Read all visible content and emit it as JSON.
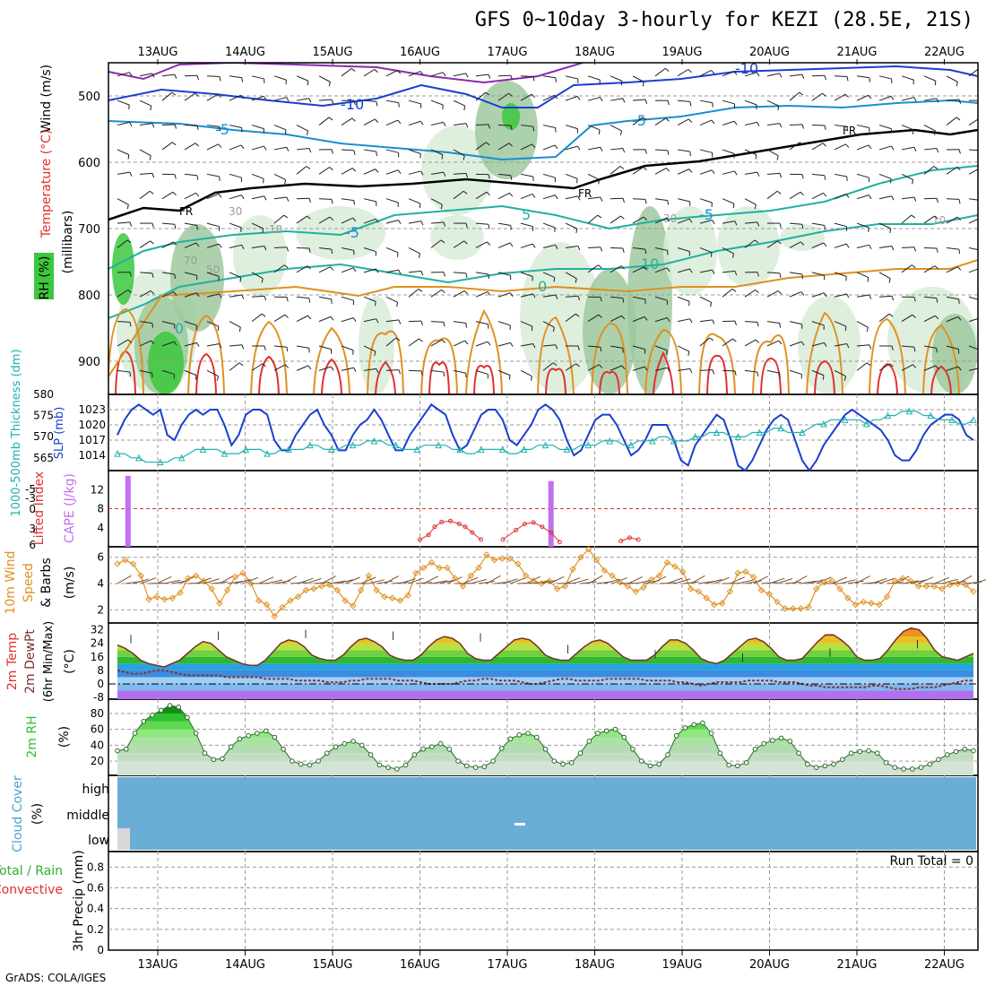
{
  "title": "GFS 0~10day 3-hourly for KEZI (28.5E, 21S)",
  "credit": "GrADS: COLA/IGES",
  "dates": [
    "13AUG",
    "14AUG",
    "15AUG",
    "16AUG",
    "17AUG",
    "18AUG",
    "19AUG",
    "20AUG",
    "21AUG",
    "22AUG"
  ],
  "colors": {
    "frame": "#000000",
    "grid": "#9a9a9a",
    "wind": "#202020",
    "temp_cold": "#1a3fd0",
    "temp_mid": "#1a8fd0",
    "temp_cool": "#20b0a0",
    "temp_warm": "#e09020",
    "temp_hot": "#e03030",
    "freezing": "#000000",
    "rh_light": "#d8ecd8",
    "rh_mid": "#9fc99f",
    "rh_dark": "#7a9a7a",
    "rh_green": "#3cc83c",
    "slp": "#1a3fd0",
    "thickness": "#20b0b0",
    "cape": "#c070f0",
    "li": "#e03030",
    "wind10": "#e09020",
    "rh2m": "#30c030",
    "cloud": "#6aaed6",
    "precip": "#30b030"
  },
  "chart_data": [
    {
      "type": "heatmap",
      "name": "upper_air",
      "ylabel": "(millibars)",
      "side_labels": [
        "Wind (m/s)",
        "Temperature (°C)",
        "RH (%)"
      ],
      "yticks": [
        500,
        600,
        700,
        800,
        900
      ],
      "ylim": [
        450,
        950
      ],
      "contour_labels": [
        "-10",
        "-10",
        "-5",
        "-5",
        "-5",
        "-5",
        "0",
        "0",
        "5",
        "10",
        "10",
        "FR",
        "FR",
        "FR",
        "30",
        "50",
        "70",
        "10",
        "30"
      ]
    },
    {
      "type": "line",
      "name": "slp_thickness",
      "left_label": "1000-500mb Thickness (dm)",
      "right_label": "SLP (mb)",
      "left_ticks": [
        565,
        570,
        575,
        580
      ],
      "right_ticks": [
        1014,
        1017,
        1020,
        1023
      ],
      "series": [
        {
          "name": "SLP (mb)",
          "values": [
            1018,
            1021,
            1023,
            1024,
            1023,
            1022,
            1023,
            1018,
            1017,
            1020,
            1022,
            1023,
            1022,
            1023,
            1023,
            1020,
            1016,
            1018,
            1022,
            1023,
            1023,
            1022,
            1017,
            1015,
            1015,
            1018,
            1020,
            1022,
            1023,
            1020,
            1018,
            1015,
            1015,
            1018,
            1020,
            1021,
            1023,
            1021,
            1018,
            1015,
            1015,
            1018,
            1020,
            1022,
            1024,
            1023,
            1022,
            1018,
            1015,
            1016,
            1019,
            1022,
            1023,
            1023,
            1021,
            1017,
            1016,
            1018,
            1020,
            1023,
            1024,
            1023,
            1021,
            1017,
            1014,
            1015,
            1018,
            1021,
            1022,
            1022,
            1020,
            1017,
            1014,
            1015,
            1017,
            1020,
            1020,
            1020,
            1017,
            1013,
            1012,
            1016,
            1018,
            1020,
            1022,
            1021,
            1017,
            1012,
            1011,
            1013,
            1016,
            1019,
            1021,
            1022,
            1021,
            1017,
            1013,
            1011,
            1013,
            1016,
            1018,
            1020,
            1022,
            1023,
            1022,
            1021,
            1020,
            1019,
            1017,
            1014,
            1013,
            1013,
            1015,
            1018,
            1020,
            1021,
            1022,
            1022,
            1021,
            1018,
            1017
          ]
        },
        {
          "name": "1000-500mb Thickness (dm)",
          "values": [
            566,
            566,
            565,
            565,
            564,
            564,
            564,
            564,
            565,
            565,
            566,
            567,
            567,
            567,
            567,
            566,
            566,
            566,
            567,
            567,
            567,
            566,
            566,
            567,
            567,
            567,
            567,
            568,
            568,
            567,
            567,
            567,
            568,
            568,
            568,
            569,
            569,
            569,
            568,
            568,
            567,
            567,
            567,
            568,
            568,
            568,
            568,
            567,
            567,
            566,
            566,
            567,
            567,
            567,
            567,
            566,
            566,
            567,
            567,
            568,
            568,
            568,
            567,
            567,
            567,
            568,
            568,
            568,
            569,
            569,
            569,
            568,
            568,
            569,
            569,
            569,
            570,
            570,
            569,
            569,
            569,
            570,
            570,
            571,
            571,
            571,
            570,
            570,
            570,
            571,
            571,
            571,
            572,
            572,
            571,
            571,
            571,
            572,
            573,
            573,
            574,
            574,
            574,
            574,
            574,
            573,
            574,
            574,
            575,
            575,
            576,
            576,
            576,
            575,
            575,
            574,
            574,
            574,
            573,
            573,
            574
          ]
        }
      ]
    },
    {
      "type": "bar",
      "name": "cape_li",
      "left_label": "Lifted Index",
      "right_label": "CAPE (J/kg)",
      "left_ticks": [
        "-5",
        "-3",
        "0",
        "3",
        "6"
      ],
      "right_ticks": [
        4,
        8,
        12
      ],
      "cape_bars": [
        {
          "time": 0.08,
          "value": 14.9
        },
        {
          "time": 4.92,
          "value": 13.8
        }
      ],
      "li_series": [
        {
          "time": 3.45,
          "value": 1.5
        },
        {
          "time": 3.55,
          "value": 2.5
        },
        {
          "time": 3.62,
          "value": 4.2
        },
        {
          "time": 3.7,
          "value": 5.2
        },
        {
          "time": 3.8,
          "value": 5.4
        },
        {
          "time": 3.9,
          "value": 4.8
        },
        {
          "time": 3.97,
          "value": 4.2
        },
        {
          "time": 4.05,
          "value": 3.0
        },
        {
          "time": 4.15,
          "value": 1.5
        },
        {
          "time": 4.4,
          "value": 1.5
        },
        {
          "time": 4.55,
          "value": 3.5
        },
        {
          "time": 4.65,
          "value": 4.8
        },
        {
          "time": 4.75,
          "value": 5.1
        },
        {
          "time": 4.85,
          "value": 4.2
        },
        {
          "time": 4.95,
          "value": 3.0
        },
        {
          "time": 5.05,
          "value": 1.0
        },
        {
          "time": 5.75,
          "value": 1.2
        },
        {
          "time": 5.85,
          "value": 1.9
        },
        {
          "time": 5.95,
          "value": 1.5
        }
      ]
    },
    {
      "type": "line",
      "name": "wind10m",
      "left_label": "10m Wind Speed & Barbs",
      "ylabel": "(m/s)",
      "yticks": [
        2,
        4,
        6
      ],
      "series": [
        {
          "name": "10m Wind Speed",
          "values": [
            5.5,
            5.8,
            5.5,
            4.6,
            2.8,
            3.0,
            2.8,
            2.9,
            3.3,
            4.4,
            4.6,
            4.2,
            3.6,
            2.5,
            3.5,
            4.5,
            4.8,
            4.0,
            2.7,
            2.4,
            1.5,
            2.2,
            2.7,
            3.0,
            3.5,
            3.6,
            3.8,
            3.9,
            3.5,
            2.7,
            2.3,
            3.5,
            4.6,
            3.5,
            3.0,
            2.9,
            2.7,
            3.1,
            4.8,
            5.2,
            5.6,
            5.2,
            5.2,
            4.4,
            3.8,
            4.6,
            5.2,
            6.2,
            5.8,
            5.9,
            5.9,
            5.5,
            4.6,
            4.2,
            4.0,
            4.2,
            3.6,
            3.8,
            5.1,
            6.0,
            6.6,
            5.8,
            5.0,
            4.6,
            4.1,
            3.8,
            3.4,
            3.7,
            4.3,
            4.6,
            5.6,
            5.3,
            4.9,
            3.6,
            3.4,
            2.9,
            2.4,
            2.5,
            3.4,
            4.8,
            4.9,
            4.5,
            3.5,
            3.2,
            2.6,
            2.1,
            2.1,
            2.1,
            2.2,
            3.6,
            4.1,
            4.2,
            3.6,
            2.9,
            2.4,
            2.6,
            2.5,
            2.4,
            3.0,
            4.2,
            4.4,
            4.2,
            3.8,
            3.8,
            3.8,
            3.6,
            3.9,
            4.0,
            3.9,
            3.4
          ]
        }
      ]
    },
    {
      "type": "area",
      "name": "temp2m",
      "left_label": "2m Temp 2m DewPt (6hr Min/Max)",
      "ylabel": "(°C)",
      "yticks": [
        -8,
        0,
        8,
        16,
        24,
        32
      ],
      "series": [
        {
          "name": "2m Temp",
          "values": [
            23,
            21,
            18,
            14,
            12,
            11,
            10,
            12,
            14,
            18,
            22,
            25,
            24,
            20,
            16,
            14,
            12,
            11,
            11,
            14,
            19,
            24,
            26,
            25,
            22,
            17,
            15,
            14,
            14,
            17,
            22,
            26,
            27,
            25,
            22,
            17,
            15,
            14,
            14,
            17,
            22,
            26,
            28,
            27,
            24,
            18,
            15,
            14,
            14,
            18,
            22,
            26,
            27,
            26,
            22,
            17,
            15,
            14,
            14,
            18,
            22,
            25,
            26,
            24,
            20,
            16,
            14,
            14,
            14,
            17,
            22,
            26,
            26,
            24,
            20,
            15,
            13,
            12,
            14,
            18,
            22,
            26,
            27,
            25,
            21,
            16,
            14,
            14,
            15,
            20,
            25,
            29,
            29,
            26,
            22,
            16,
            14,
            14,
            15,
            20,
            26,
            31,
            33,
            32,
            27,
            20,
            16,
            15,
            14,
            16,
            18
          ]
        },
        {
          "name": "2m DewPt",
          "values": [
            8,
            7,
            6,
            6,
            7,
            8,
            8,
            7,
            6,
            5,
            5,
            5,
            5,
            5,
            4,
            4,
            4,
            4,
            4,
            3,
            3,
            3,
            3,
            2,
            2,
            2,
            2,
            1,
            1,
            1,
            2,
            2,
            3,
            3,
            3,
            3,
            2,
            2,
            2,
            1,
            0,
            0,
            0,
            0,
            1,
            2,
            2,
            3,
            3,
            2,
            2,
            2,
            1,
            0,
            0,
            1,
            2,
            3,
            3,
            2,
            2,
            2,
            2,
            3,
            3,
            3,
            3,
            3,
            2,
            2,
            2,
            2,
            1,
            1,
            0,
            -1,
            0,
            1,
            1,
            1,
            1,
            2,
            2,
            2,
            2,
            1,
            1,
            1,
            0,
            -1,
            -1,
            -2,
            -2,
            -2,
            -2,
            -2,
            -2,
            -1,
            -1,
            -2,
            -3,
            -3,
            -3,
            -2,
            -2,
            -2,
            -1,
            0,
            1,
            2,
            2
          ]
        }
      ]
    },
    {
      "type": "area",
      "name": "rh2m",
      "left_label": "2m RH",
      "ylabel": "(%)",
      "yticks": [
        20,
        40,
        60,
        80
      ],
      "series": [
        {
          "name": "2m RH",
          "values": [
            33,
            35,
            55,
            70,
            78,
            84,
            90,
            88,
            75,
            55,
            30,
            22,
            23,
            38,
            48,
            52,
            55,
            58,
            50,
            35,
            20,
            16,
            15,
            20,
            30,
            38,
            42,
            45,
            40,
            28,
            15,
            12,
            10,
            15,
            28,
            35,
            38,
            42,
            35,
            20,
            14,
            12,
            13,
            20,
            36,
            48,
            53,
            55,
            50,
            35,
            20,
            16,
            18,
            30,
            45,
            55,
            58,
            60,
            50,
            35,
            20,
            14,
            16,
            28,
            52,
            62,
            66,
            68,
            55,
            30,
            15,
            14,
            18,
            35,
            42,
            46,
            49,
            45,
            30,
            16,
            12,
            14,
            16,
            22,
            30,
            32,
            33,
            30,
            18,
            12,
            10,
            10,
            12,
            16,
            22,
            28,
            32,
            35,
            33
          ]
        }
      ]
    },
    {
      "type": "heatmap",
      "name": "cloud_cover",
      "left_label": "Cloud Cover",
      "ylabel": "(%)",
      "levels": [
        "high",
        "middle",
        "low"
      ]
    },
    {
      "type": "bar",
      "name": "precip3hr",
      "left_label": "Total / Rain",
      "left_label2": "Convective",
      "ylabel": "3hr Precip (mm)",
      "yticks": [
        0,
        0.2,
        0.4,
        0.6,
        0.8
      ],
      "ylim": [
        0,
        0.95
      ],
      "run_total_label": "Run Total = 0",
      "values": []
    }
  ]
}
